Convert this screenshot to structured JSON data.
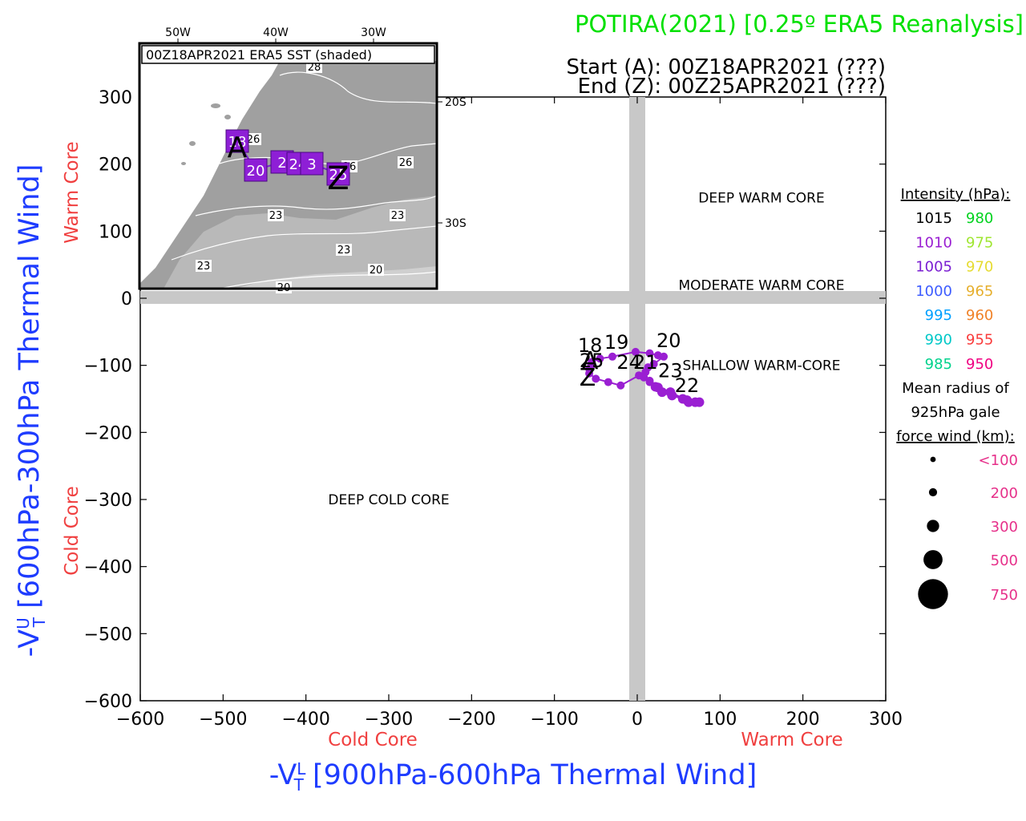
{
  "chart_data": {
    "type": "scatter",
    "title": "POTIRA(2021) [0.25º ERA5 Reanalysis]",
    "start_label": "Start (A): 00Z18APR2021 (???)",
    "end_label": "End (Z): 00Z25APR2021 (???)",
    "xlabel": "-V",
    "xlabel_sup": "L",
    "xlabel_sub": "T",
    "xlabel_rest": " [900hPa-600hPa Thermal Wind]",
    "ylabel": "-V",
    "ylabel_sup": "U",
    "ylabel_sub": "T",
    "ylabel_rest": " [600hPa-300hPa Thermal Wind]",
    "xlim": [
      -600,
      300
    ],
    "ylim": [
      -600,
      300
    ],
    "xticks": [
      -600,
      -500,
      -400,
      -300,
      -200,
      -100,
      0,
      100,
      200,
      300
    ],
    "yticks": [
      300,
      200,
      100,
      0,
      -100,
      -200,
      -300,
      -400,
      -500,
      -600
    ],
    "x_axis_side_labels": {
      "cold": "Cold Core",
      "warm": "Warm Core"
    },
    "y_axis_side_labels": {
      "warm": "Warm Core",
      "cold": "Cold Core"
    },
    "regions": [
      {
        "label": "DEEP WARM CORE",
        "x": 150,
        "y": 150
      },
      {
        "label": "MODERATE WARM CORE",
        "x": 150,
        "y": 20
      },
      {
        "label": "SHALLOW WARM-CORE",
        "x": 150,
        "y": -100
      },
      {
        "label": "DEEP COLD CORE",
        "x": -300,
        "y": -300
      }
    ],
    "track_color": "#9A1FD2",
    "track": [
      {
        "x": -55,
        "y": -95,
        "r": 10
      },
      {
        "x": -45,
        "y": -90,
        "r": 10
      },
      {
        "x": -30,
        "y": -87,
        "r": 10
      },
      {
        "x": -2,
        "y": -80,
        "r": 10
      },
      {
        "x": 15,
        "y": -82,
        "r": 10
      },
      {
        "x": 25,
        "y": -85,
        "r": 10
      },
      {
        "x": 32,
        "y": -87,
        "r": 10
      },
      {
        "x": 20,
        "y": -98,
        "r": 10
      },
      {
        "x": 13,
        "y": -103,
        "r": 10
      },
      {
        "x": 10,
        "y": -110,
        "r": 10
      },
      {
        "x": 8,
        "y": -118,
        "r": 10
      },
      {
        "x": 15,
        "y": -125,
        "r": 10
      },
      {
        "x": 22,
        "y": -132,
        "r": 12
      },
      {
        "x": 30,
        "y": -140,
        "r": 12
      },
      {
        "x": 42,
        "y": -145,
        "r": 12
      },
      {
        "x": 55,
        "y": -150,
        "r": 12
      },
      {
        "x": 62,
        "y": -155,
        "r": 12
      },
      {
        "x": 70,
        "y": -155,
        "r": 12
      },
      {
        "x": 75,
        "y": -155,
        "r": 12
      },
      {
        "x": 60,
        "y": -152,
        "r": 12
      },
      {
        "x": 40,
        "y": -140,
        "r": 12
      },
      {
        "x": 25,
        "y": -133,
        "r": 12
      },
      {
        "x": 15,
        "y": -123,
        "r": 10
      },
      {
        "x": 2,
        "y": -115,
        "r": 10
      },
      {
        "x": -20,
        "y": -130,
        "r": 10
      },
      {
        "x": -35,
        "y": -125,
        "r": 10
      },
      {
        "x": -50,
        "y": -120,
        "r": 10
      },
      {
        "x": -58,
        "y": -112,
        "r": 10
      },
      {
        "x": -58,
        "y": -105,
        "r": 10
      },
      {
        "x": -55,
        "y": -100,
        "r": 10
      }
    ],
    "track_point_labels": [
      {
        "text": "18",
        "x": -57,
        "y": -80
      },
      {
        "text": "19",
        "x": -25,
        "y": -75
      },
      {
        "text": "20",
        "x": 38,
        "y": -73
      },
      {
        "text": "21",
        "x": 10,
        "y": -105
      },
      {
        "text": "23",
        "x": 40,
        "y": -118
      },
      {
        "text": "22",
        "x": 60,
        "y": -140
      },
      {
        "text": "24",
        "x": -10,
        "y": -105
      },
      {
        "text": "25",
        "x": -55,
        "y": -103
      }
    ],
    "start_marker": {
      "text": "A",
      "x": -57,
      "y": -105
    },
    "end_marker": {
      "text": "Z",
      "x": -60,
      "y": -130
    },
    "legend": {
      "intensity_title": "Intensity (hPa):",
      "intensity": [
        {
          "a": "1015",
          "a_color": "#000000",
          "b": "980",
          "b_color": "#00D21E"
        },
        {
          "a": "1010",
          "a_color": "#9A1FD2",
          "b": "975",
          "b_color": "#A0E632"
        },
        {
          "a": "1005",
          "a_color": "#7B1FD2",
          "b": "970",
          "b_color": "#E6DC32"
        },
        {
          "a": "1000",
          "a_color": "#3D5CFF",
          "b": "965",
          "b_color": "#E6AF2D"
        },
        {
          "a": "995",
          "a_color": "#00A0FF",
          "b": "960",
          "b_color": "#F08228"
        },
        {
          "a": "990",
          "a_color": "#00C8C8",
          "b": "955",
          "b_color": "#FA3C3C"
        },
        {
          "a": "985",
          "a_color": "#00D28C",
          "b": "950",
          "b_color": "#F00082"
        }
      ],
      "radius_title_lines": [
        "Mean radius of",
        "925hPa gale",
        "force wind (km):"
      ],
      "radius_color": "#E6308A",
      "radius": [
        {
          "label": "<100",
          "size": 4
        },
        {
          "label": "200",
          "size": 6
        },
        {
          "label": "300",
          "size": 9
        },
        {
          "label": "500",
          "size": 14
        },
        {
          "label": "750",
          "size": 22
        }
      ]
    },
    "inset": {
      "title": "00Z18APR2021 ERA5 SST (shaded)",
      "top_ticks": [
        "50W",
        "40W",
        "30W"
      ],
      "right_ticks": [
        "20S",
        "30S"
      ],
      "contour_labels": [
        {
          "text": "28",
          "x": 218,
          "y": 34
        },
        {
          "text": "26",
          "x": 142,
          "y": 124
        },
        {
          "text": "26",
          "x": 332,
          "y": 153
        },
        {
          "text": "26",
          "x": 262,
          "y": 158
        },
        {
          "text": "23",
          "x": 170,
          "y": 219
        },
        {
          "text": "23",
          "x": 322,
          "y": 219
        },
        {
          "text": "23",
          "x": 255,
          "y": 262
        },
        {
          "text": "23",
          "x": 80,
          "y": 282
        },
        {
          "text": "20",
          "x": 295,
          "y": 287
        },
        {
          "text": "20",
          "x": 180,
          "y": 309
        }
      ],
      "storm_boxes": [
        {
          "text": "18",
          "x": 122,
          "y": 122
        },
        {
          "text": "20",
          "x": 145,
          "y": 158
        },
        {
          "text": "2",
          "x": 178,
          "y": 148
        },
        {
          "text": "24",
          "x": 198,
          "y": 150
        },
        {
          "text": "3",
          "x": 215,
          "y": 150
        },
        {
          "text": "25",
          "x": 248,
          "y": 163
        }
      ],
      "start_marker": "A",
      "end_marker": "Z"
    }
  }
}
